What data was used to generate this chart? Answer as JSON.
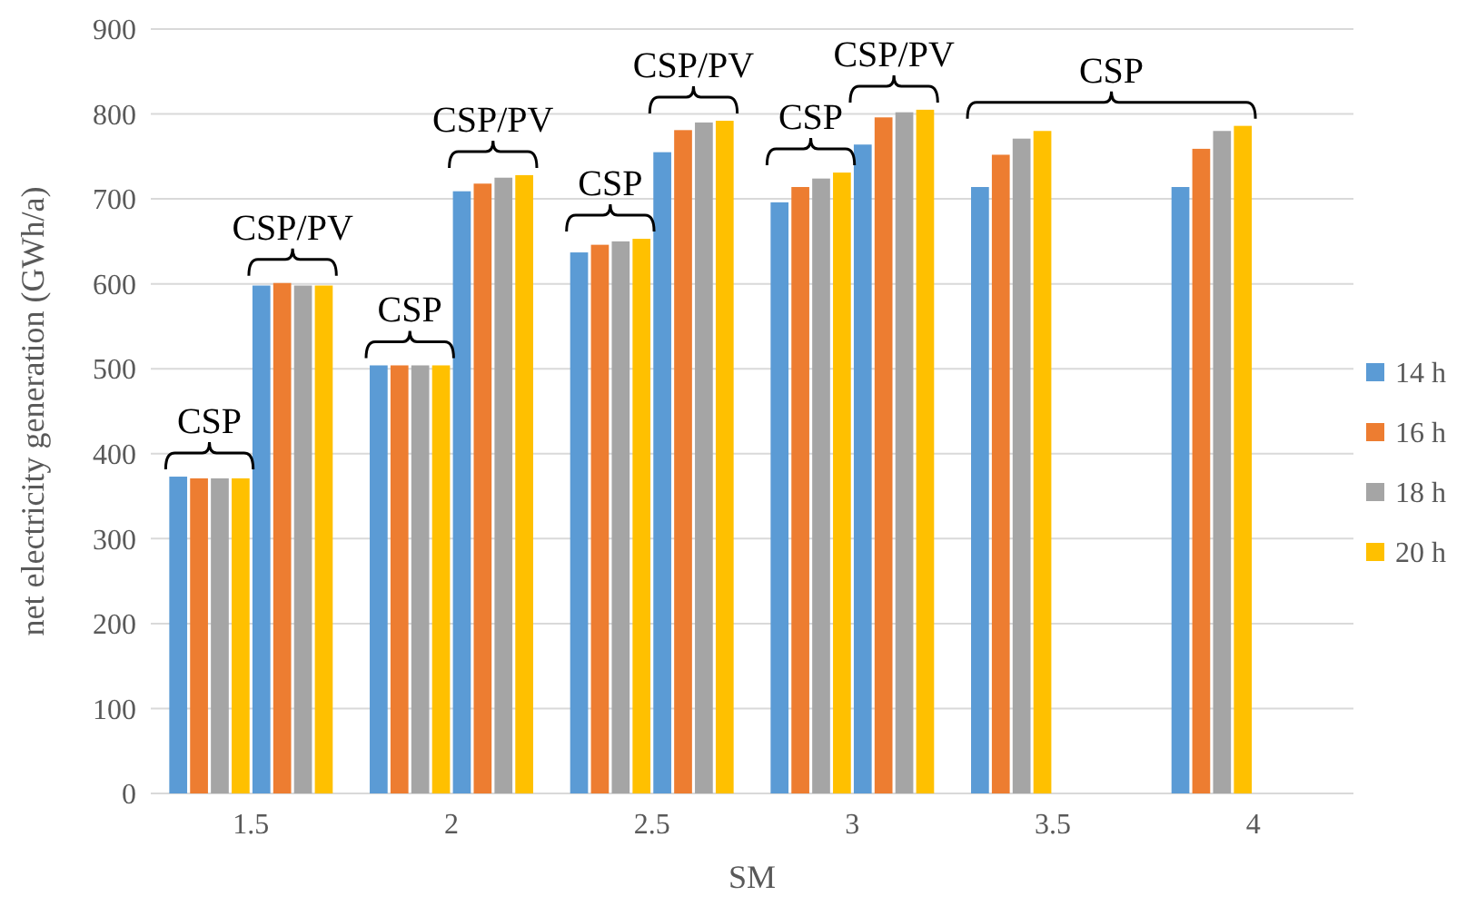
{
  "chart_data": {
    "type": "bar",
    "categories": [
      "1.5",
      "2",
      "2.5",
      "3",
      "3.5",
      "4"
    ],
    "xlabel": "SM",
    "ylabel": "net electricity generation (GWh/a)",
    "ylim": [
      0,
      900
    ],
    "yticks": [
      0,
      100,
      200,
      300,
      400,
      500,
      600,
      700,
      800,
      900
    ],
    "grid": "y",
    "legend": "right",
    "series": [
      {
        "name": "14 h",
        "color": "#5b9bd5",
        "values": [
          373,
          504,
          637,
          696,
          714,
          714
        ]
      },
      {
        "name": "16 h",
        "color": "#ed7d31",
        "values": [
          371,
          504,
          646,
          714,
          752,
          759
        ]
      },
      {
        "name": "18 h",
        "color": "#a5a5a5",
        "values": [
          371,
          504,
          650,
          724,
          771,
          780
        ]
      },
      {
        "name": "20 h",
        "color": "#ffc000",
        "values": [
          371,
          504,
          653,
          731,
          780,
          786
        ]
      },
      {
        "color": "#5b9bd5",
        "values": [
          598,
          709,
          755,
          764,
          null,
          null
        ]
      },
      {
        "color": "#ed7d31",
        "values": [
          601,
          718,
          781,
          796,
          null,
          null
        ]
      },
      {
        "color": "#a5a5a5",
        "values": [
          598,
          725,
          790,
          802,
          null,
          null
        ]
      },
      {
        "color": "#ffc000",
        "values": [
          598,
          728,
          792,
          805,
          null,
          null
        ]
      }
    ],
    "annotations": [
      "CSP",
      "CSP/PV",
      "CSP",
      "CSP/PV",
      "CSP",
      "CSP/PV",
      "CSP",
      "CSP/PV",
      "CSP"
    ]
  }
}
